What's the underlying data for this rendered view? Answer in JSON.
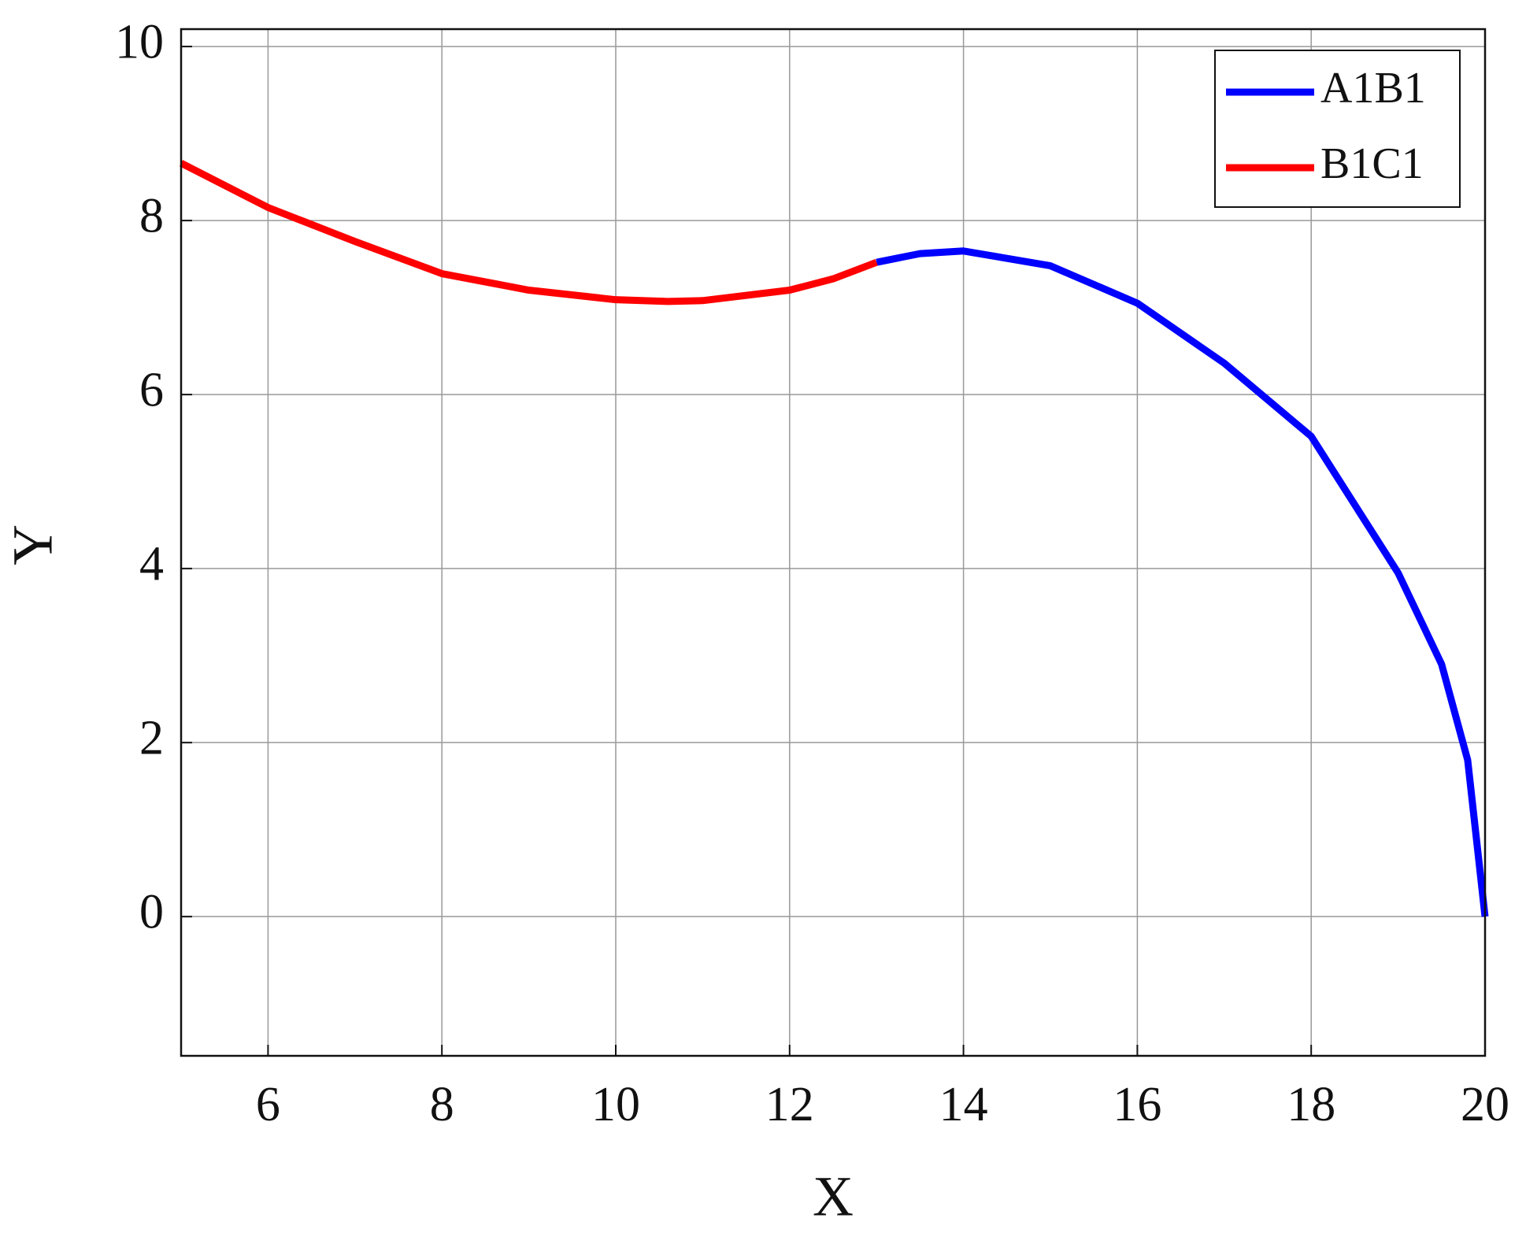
{
  "chart_data": {
    "type": "line",
    "x_label": "X",
    "y_label": "Y",
    "xlim": [
      5,
      20
    ],
    "ylim": [
      -1.6,
      10.2
    ],
    "xticks": [
      6,
      8,
      10,
      12,
      14,
      16,
      18,
      20
    ],
    "yticks": [
      0,
      2,
      4,
      6,
      8,
      10
    ],
    "grid": true,
    "legend": "upper right",
    "series": [
      {
        "name": "A1B1",
        "color": "#0000ff",
        "x": [
          13,
          13.5,
          14,
          15,
          16,
          17,
          18,
          19,
          19.5,
          19.8,
          20
        ],
        "values": [
          7.52,
          7.62,
          7.65,
          7.48,
          7.05,
          6.36,
          5.52,
          3.95,
          2.9,
          1.8,
          0
        ]
      },
      {
        "name": "B1C1",
        "color": "#ff0000",
        "x": [
          5,
          6,
          7,
          8,
          9,
          10,
          10.6,
          11,
          12,
          12.5,
          13
        ],
        "values": [
          8.66,
          8.15,
          7.76,
          7.39,
          7.2,
          7.09,
          7.07,
          7.08,
          7.2,
          7.33,
          7.52
        ]
      }
    ]
  }
}
